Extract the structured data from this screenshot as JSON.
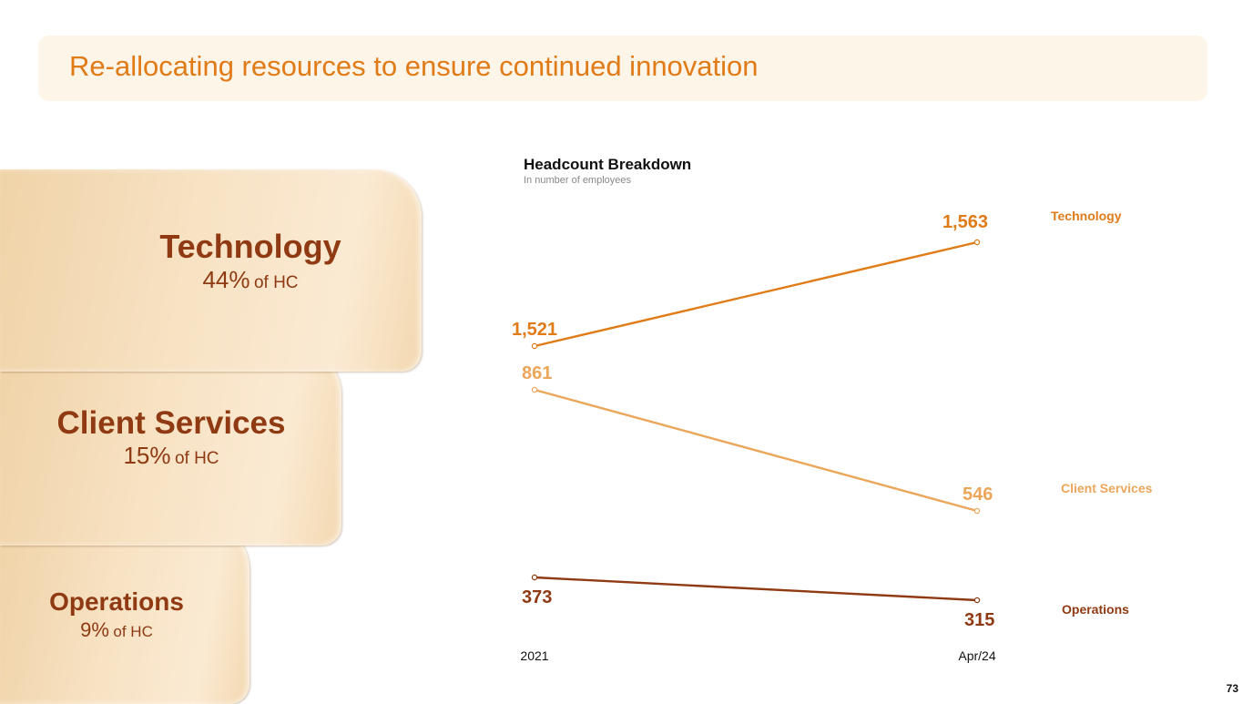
{
  "title": "Re-allocating resources to ensure continued innovation",
  "cards": [
    {
      "name": "Technology",
      "pct": "44%",
      "suffix": "of HC"
    },
    {
      "name": "Client Services",
      "pct": "15%",
      "suffix": "of HC"
    },
    {
      "name": "Operations",
      "pct": "9%",
      "suffix": "of HC"
    }
  ],
  "page_number": "73",
  "chart_data": {
    "type": "line",
    "title": "Headcount Breakdown",
    "subtitle": "In number of employees",
    "categories": [
      "2021",
      "Apr/24"
    ],
    "series": [
      {
        "name": "Technology",
        "values": [
          1521,
          1563
        ],
        "labels": [
          "1,521",
          "1,563"
        ],
        "color": "#e07b18"
      },
      {
        "name": "Client Services",
        "values": [
          861,
          546
        ],
        "labels": [
          "861",
          "546"
        ],
        "color": "#eba65a"
      },
      {
        "name": "Operations",
        "values": [
          373,
          315
        ],
        "labels": [
          "373",
          "315"
        ],
        "color": "#8f3a12"
      }
    ]
  }
}
